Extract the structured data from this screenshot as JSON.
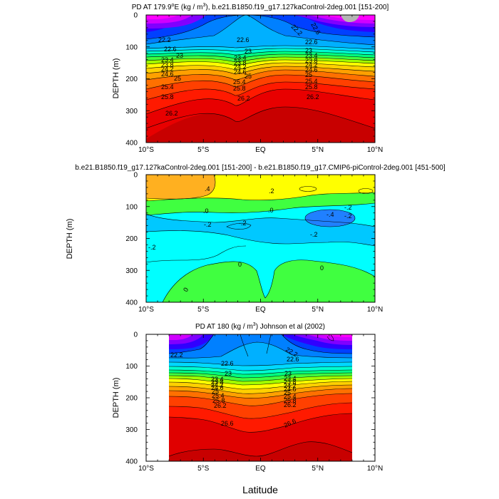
{
  "chart_data": [
    {
      "type": "contour",
      "title_pre": "PD AT 179.9",
      "title_sup": "o",
      "title_mid": "E (kg / m",
      "title_sup2": "3",
      "title_post": "), b.e21.B1850.f19_g17.127kaControl-2deg.001 [151-200]",
      "ylabel": "DEPTH (m)",
      "xlabel": "",
      "x_ticks": [
        "10°S",
        "5°S",
        "EQ",
        "5°N",
        "10°N"
      ],
      "y_ticks": [
        "0",
        "100",
        "200",
        "300",
        "400"
      ],
      "xlim": [
        -10,
        10
      ],
      "ylim": [
        400,
        0
      ],
      "contour_labels": [
        "22.2",
        "22.6",
        "23",
        "23.4",
        "23.8",
        "24.2",
        "24.6",
        "25",
        "25.4",
        "25.8",
        "26.2",
        "22.6",
        "23",
        "23.4",
        "23.8",
        "24.2",
        "24.6",
        "25",
        "25.4",
        "25.8",
        "26.2",
        "22.2",
        "22.6",
        "23",
        "23.4",
        "23.8",
        "24.2",
        "24.6",
        "25",
        "25.4",
        "25.8",
        "26.2",
        "22.6"
      ]
    },
    {
      "type": "contour",
      "title": "b.e21.B1850.f19_g17.127kaControl-2deg.001 [151-200] - b.e21.B1850.f19_g17.CMIP6-piControl-2deg.001 [451-500]",
      "ylabel": "DEPTH (m)",
      "x_ticks": [
        "10°S",
        "5°S",
        "EQ",
        "5°N",
        "10°N"
      ],
      "y_ticks": [
        "0",
        "100",
        "200",
        "300",
        "400"
      ],
      "xlim": [
        -10,
        10
      ],
      "ylim": [
        400,
        0
      ],
      "contour_labels": [
        ".4",
        ".2",
        ".0",
        "-.2",
        "-.2",
        "-.2",
        "-.2",
        "-.4",
        "-.2",
        "0",
        "0",
        "0",
        ".0",
        "-.2"
      ]
    },
    {
      "type": "contour",
      "title_pre": "PD AT 180 (kg / m",
      "title_sup": "3",
      "title_post": ") Johnson et al (2002)",
      "ylabel": "DEPTH (m)",
      "x_ticks": [
        "10°S",
        "5°S",
        "EQ",
        "5°N",
        "10°N"
      ],
      "y_ticks": [
        "0",
        "100",
        "200",
        "300",
        "400"
      ],
      "xlim": [
        -10,
        10
      ],
      "ylim": [
        400,
        0
      ],
      "contour_labels": [
        "22.2",
        "22.6",
        "23",
        "23.4",
        "23.8",
        "24.2",
        "24.6",
        "25",
        "25.4",
        "25.8",
        "26.2",
        "26.6",
        "22.2",
        "22.6",
        "23",
        "23.4",
        "23.8",
        "24.2",
        "24.6",
        "25",
        "25.4",
        "25.8",
        "26.2",
        "26.6"
      ]
    }
  ],
  "figure": {
    "xlabel": "Latitude"
  },
  "colors": {
    "density_scale": [
      "#ff00ff",
      "#d000ff",
      "#8000ff",
      "#3000ff",
      "#0040ff",
      "#0080ff",
      "#00b0ff",
      "#00d8ff",
      "#00ffd0",
      "#00ff80",
      "#40ff40",
      "#a0ff00",
      "#ffff00",
      "#ffd000",
      "#ffa000",
      "#ff7000",
      "#ff4000",
      "#ff1a00",
      "#e80000",
      "#c80000"
    ],
    "anomaly_scale": [
      "#2080ff",
      "#00c8ff",
      "#00ffff",
      "#40ff40",
      "#ffff00",
      "#ffb020"
    ]
  }
}
